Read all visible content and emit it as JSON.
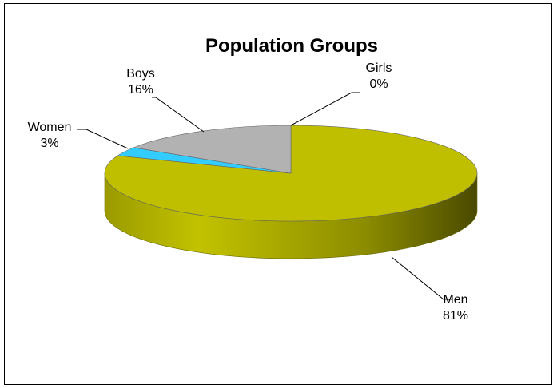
{
  "chart_data": {
    "type": "pie",
    "style": "3d",
    "title": "Population Groups",
    "categories": [
      "Men",
      "Women",
      "Boys",
      "Girls"
    ],
    "values": [
      81,
      3,
      16,
      0
    ],
    "value_labels": [
      "81%",
      "3%",
      "16%",
      "0%"
    ],
    "colors": {
      "Men": "#BFBF00",
      "Women": "#33CCFF",
      "Boys": "#B2B2B2",
      "Girls": "#D9D9D9"
    },
    "legend": "none"
  }
}
